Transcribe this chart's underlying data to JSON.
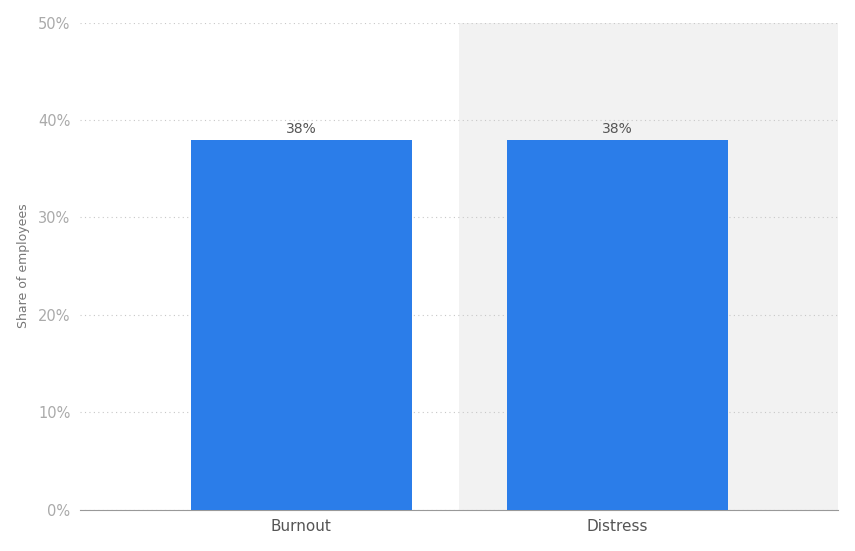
{
  "categories": [
    "Burnout",
    "Distress"
  ],
  "values": [
    38,
    38
  ],
  "bar_color": "#2b7de9",
  "bar_width": 0.7,
  "ylabel": "Share of employees",
  "ylim": [
    0,
    50
  ],
  "yticks": [
    0,
    10,
    20,
    30,
    40,
    50
  ],
  "ytick_labels": [
    "0%",
    "10%",
    "20%",
    "30%",
    "40%",
    "50%"
  ],
  "value_labels": [
    "38%",
    "38%"
  ],
  "background_color": "#ffffff",
  "left_bg_color": "#ffffff",
  "right_bg_color": "#f2f2f2",
  "grid_color": "#c8c8c8",
  "tick_color": "#aaaaaa",
  "label_color": "#555555",
  "ylabel_color": "#777777",
  "axis_label_fontsize": 9,
  "tick_fontsize": 10.5,
  "value_label_fontsize": 10,
  "xlabel_fontsize": 11
}
